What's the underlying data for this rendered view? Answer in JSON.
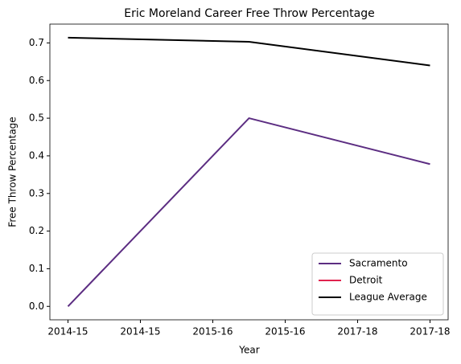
{
  "chart_data": {
    "type": "line",
    "title": "Eric Moreland Career Free Throw Percentage",
    "x_label": "Year",
    "y_label": "Free Throw Percentage",
    "x": [
      0,
      1,
      2
    ],
    "series": [
      {
        "name": "Sacramento",
        "color": "#5c2d82",
        "values": [
          0.0,
          0.5,
          0.378
        ]
      },
      {
        "name": "Detroit",
        "color": "#e0234e",
        "values": [
          null,
          null,
          null
        ]
      },
      {
        "name": "League Average",
        "color": "#000000",
        "values": [
          0.714,
          0.703,
          0.64
        ]
      }
    ],
    "xlim": [
      -0.1,
      2.1
    ],
    "xticks": [
      {
        "value": 0,
        "label": "2014-15"
      },
      {
        "value": 0.4,
        "label": "2014-15"
      },
      {
        "value": 0.8,
        "label": "2015-16"
      },
      {
        "value": 1.2,
        "label": "2015-16"
      },
      {
        "value": 1.6,
        "label": "2017-18"
      },
      {
        "value": 2.0,
        "label": "2017-18"
      }
    ],
    "ylim": [
      -0.0357,
      0.75
    ],
    "yticks": [
      {
        "value": 0,
        "label": "0.0"
      },
      0.1,
      0.2,
      0.3,
      0.4,
      0.5,
      0.6,
      0.7
    ],
    "legend": "lower right",
    "grid": false
  }
}
